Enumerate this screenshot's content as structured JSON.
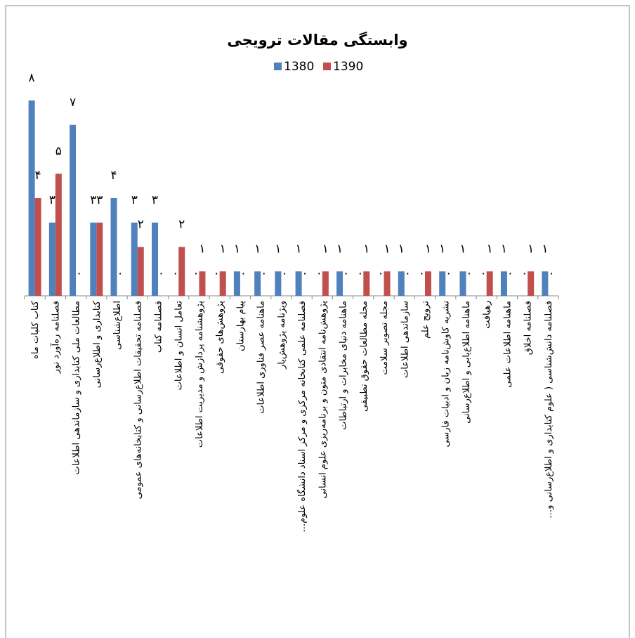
{
  "chart_data": {
    "type": "bar",
    "title": "وابستگی مقالات ترویجی",
    "categories": [
      "کتاب کلیات ماه",
      "فصلنامه ره‌آورد نور",
      "مطالعات ملی کتابداری و سازماندهی اطلاعات",
      "کتابداری و اطلاع‌رسانی",
      "اطلاع‌شناسی",
      "فصلنامه تحقیقات اطلاع‌رسانی و کتابخانه‌های عمومی",
      "فصلنامه کتاب",
      "تعامل انسان و اطلاعات",
      "پژوهشنامه پردازش و مدیریت اطلاعات",
      "پژوهش‌های حقوقی",
      "پیام بهارستان",
      "ماهنامه عصر فناوری اطلاعات",
      "ویژنامه پژوهش‌یار",
      "فصلنامه علمی کتابخانه مرکزی و مرکز اسناد دانشگاه علوم…",
      "پژوهش‌نامه انتقادی متون و برنامه‌ریزی علوم انسانی",
      "ماهنامه دنیای مخابرات و ارتباطات",
      "مجله مطالعات حقوق تطبیقی",
      "مجله تصویر سلامت",
      "سازماندهی اطلاعات",
      "ترویج علم",
      "نشریه کاوش‌نامه زبان و ادبیات فارسی",
      "ماهنامه اطلاع‌یابی و اطلاع‌رسانی",
      "رهیافت",
      "ماهنامه اطلاعات علمی",
      "فصلنامه اخلاق",
      "فصلنامه دانش‌شناسی ( علوم کتابداری و اطلاع‌رسانی و…"
    ],
    "series": [
      {
        "name": "1380",
        "color": "#4f81bd",
        "values": [
          8,
          3,
          7,
          3,
          4,
          3,
          3,
          0,
          0,
          0,
          1,
          1,
          1,
          1,
          0,
          1,
          0,
          0,
          1,
          0,
          1,
          1,
          0,
          1,
          0,
          1
        ],
        "value_labels": [
          "۸",
          "۳",
          "۷",
          "۳",
          "۴",
          "۳",
          "۳",
          "۰",
          "۰",
          "۰",
          "۱",
          "۱",
          "۱",
          "۱",
          "۰",
          "۱",
          "۰",
          "۰",
          "۱",
          "۰",
          "۱",
          "۱",
          "۰",
          "۱",
          "۰",
          "۱"
        ]
      },
      {
        "name": "1390",
        "color": "#c0504d",
        "values": [
          4,
          5,
          0,
          3,
          0,
          2,
          0,
          2,
          1,
          1,
          0,
          0,
          0,
          0,
          1,
          0,
          1,
          1,
          0,
          1,
          0,
          0,
          1,
          0,
          1,
          0
        ],
        "value_labels": [
          "۴",
          "۵",
          "۰",
          "۳",
          "۰",
          "۲",
          "۰",
          "۲",
          "۱",
          "۱",
          "۰",
          "۰",
          "۰",
          "۰",
          "۱",
          "۰",
          "۱",
          "۱",
          "۰",
          "۱",
          "۰",
          "۰",
          "۱",
          "۰",
          "۱",
          "۰"
        ]
      }
    ],
    "ylim": [
      0,
      8
    ],
    "legend": "top"
  }
}
